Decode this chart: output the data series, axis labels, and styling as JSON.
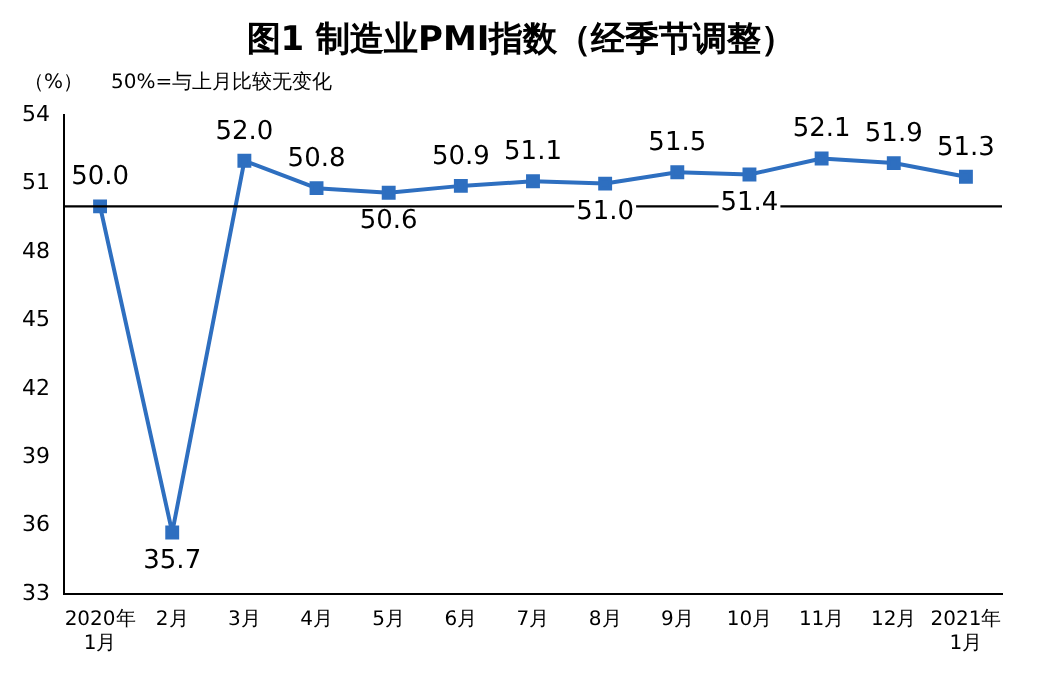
{
  "chart_data": {
    "type": "line",
    "title": "图1 制造业PMI指数（经季节调整）",
    "ylabel": "（%）",
    "annotations": [
      "50%=与上月比较无变化"
    ],
    "categories": [
      "2020年\n1月",
      "2月",
      "3月",
      "4月",
      "5月",
      "6月",
      "7月",
      "8月",
      "9月",
      "10月",
      "11月",
      "12月",
      "2021年\n1月"
    ],
    "series": [
      {
        "color": "#2e6fc0",
        "values": [
          50.0,
          35.7,
          52.0,
          50.8,
          50.6,
          50.9,
          51.1,
          51.0,
          51.5,
          51.4,
          52.1,
          51.9,
          51.3
        ],
        "value_labels": [
          "50.0",
          "35.7",
          "52.0",
          "50.8",
          "50.6",
          "50.9",
          "51.1",
          "51.0",
          "51.5",
          "51.4",
          "52.1",
          "51.9",
          "51.3"
        ]
      }
    ],
    "ylim": [
      33,
      54
    ],
    "yticks": [
      33,
      36,
      39,
      42,
      45,
      48,
      51,
      54
    ],
    "grid": false,
    "legend": false,
    "marker": "square",
    "line_style": "solid",
    "ref_lines": [
      {
        "axis": "y",
        "value": 50,
        "color": "#000000"
      }
    ]
  }
}
